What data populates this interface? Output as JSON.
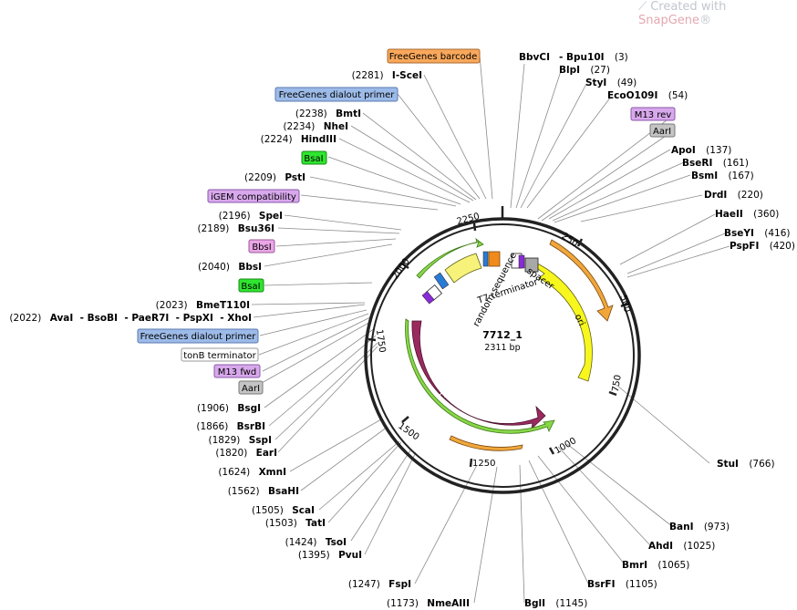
{
  "watermark": {
    "prefix": "Created with ",
    "brand": "SnapGene",
    "reg": "®"
  },
  "plasmid": {
    "name": "7712_1",
    "length": "2311 bp"
  },
  "ticks": [
    "250",
    "500",
    "750",
    "1000",
    "1250",
    "1500",
    "1750",
    "2000",
    "2250"
  ],
  "top_labels": [
    {
      "name": "BbvCI",
      "pos": ""
    },
    {
      "name": "- Bpu10I",
      "pos": "(3)"
    },
    {
      "name": "BlpI",
      "pos": "(27)"
    },
    {
      "name": "StyI",
      "pos": "(49)"
    },
    {
      "name": "EcoO109I",
      "pos": "(54)"
    },
    {
      "name": "ApoI",
      "pos": "(137)"
    },
    {
      "name": "BseRI",
      "pos": "(161)"
    },
    {
      "name": "BsmI",
      "pos": "(167)"
    },
    {
      "name": "DrdI",
      "pos": "(220)"
    },
    {
      "name": "HaeII",
      "pos": "(360)"
    },
    {
      "name": "BseYI",
      "pos": "(416)"
    },
    {
      "name": "PspFI",
      "pos": "(420)"
    },
    {
      "name": "StuI",
      "pos": "(766)"
    },
    {
      "name": "BanI",
      "pos": "(973)"
    },
    {
      "name": "AhdI",
      "pos": "(1025)"
    },
    {
      "name": "BmrI",
      "pos": "(1065)"
    },
    {
      "name": "BsrFI",
      "pos": "(1105)"
    },
    {
      "name": "BglI",
      "pos": "(1145)"
    },
    {
      "name": "NmeAIII",
      "pos": "(1173)"
    },
    {
      "name": "FspI",
      "pos": "(1247)"
    },
    {
      "name": "PvuI",
      "pos": "(1395)"
    },
    {
      "name": "TsoI",
      "pos": "(1424)"
    },
    {
      "name": "TatI",
      "pos": "(1503)"
    },
    {
      "name": "ScaI",
      "pos": "(1505)"
    },
    {
      "name": "BsaHI",
      "pos": "(1562)"
    },
    {
      "name": "XmnI",
      "pos": "(1624)"
    },
    {
      "name": "EarI",
      "pos": "(1820)"
    },
    {
      "name": "SspI",
      "pos": "(1829)"
    },
    {
      "name": "BsrBI",
      "pos": "(1866)"
    },
    {
      "name": "BsgI",
      "pos": "(1906)"
    },
    {
      "name": "XhoI",
      "pos": "(2022)"
    },
    {
      "name": "BmeT110I",
      "pos": "(2023)"
    },
    {
      "name": "BbsI",
      "pos": "(2040)"
    },
    {
      "name": "Bsu36I",
      "pos": "(2189)"
    },
    {
      "name": "SpeI",
      "pos": "(2196)"
    },
    {
      "name": "PstI",
      "pos": "(2209)"
    },
    {
      "name": "HindIII",
      "pos": "(2224)"
    },
    {
      "name": "NheI",
      "pos": "(2234)"
    },
    {
      "name": "BmtI",
      "pos": "(2238)"
    },
    {
      "name": "I-SceI",
      "pos": "(2281)"
    }
  ],
  "xho_group": {
    "pos": "(2022)",
    "names": [
      "AvaI",
      "- BsoBI",
      "- PaeR7I",
      "- PspXI",
      "- XhoI"
    ]
  },
  "boxes": [
    {
      "text": "FreeGenes barcode",
      "color": "#f9a85b"
    },
    {
      "text": "FreeGenes dialout primer",
      "color": "#9dbbe8"
    },
    {
      "text": "BsaI",
      "color": "#2ee62e"
    },
    {
      "text": "iGEM compatibility",
      "color": "#d8a8ec"
    },
    {
      "text": "BbsI",
      "color": "#eaa6e6"
    },
    {
      "text": "BsaI",
      "color": "#2ee62e"
    },
    {
      "text": "FreeGenes dialout primer",
      "color": "#9dbbe8"
    },
    {
      "text": "tonB terminator",
      "color": "#ffffff"
    },
    {
      "text": "M13 fwd",
      "color": "#d8a8ec"
    },
    {
      "text": "AarI",
      "color": "#c4c4c4"
    },
    {
      "text": "M13 rev",
      "color": "#d8a8ec"
    },
    {
      "text": "AarI",
      "color": "#c4c4c4"
    }
  ],
  "features": {
    "ori": "ori",
    "ampr": "AmpR",
    "spacer": "spacer",
    "t7": "T7 terminator",
    "random": "random sequence"
  }
}
